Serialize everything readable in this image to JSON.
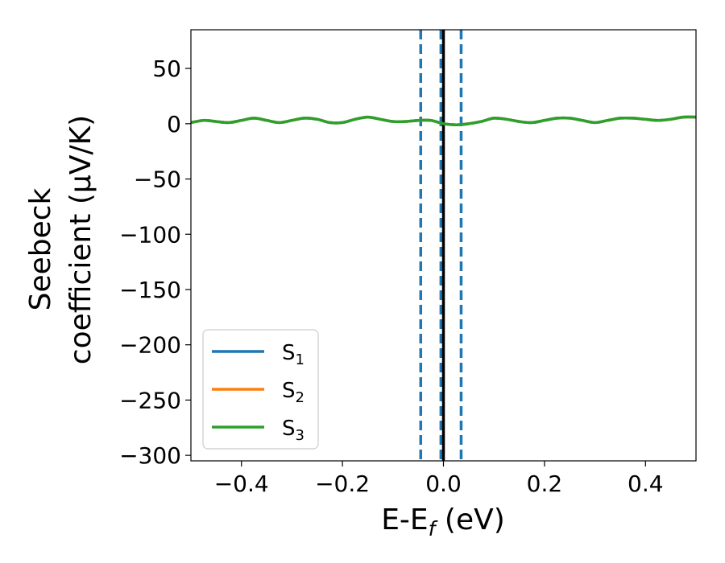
{
  "chart_data": {
    "type": "line",
    "xlabel": "E-E",
    "xlabel_sub": "f",
    "xlabel_unit": " (eV)",
    "ylabel_line1": "Seebeck",
    "ylabel_line2": "coefficient  (μV/K)",
    "xlim": [
      -0.5,
      0.5
    ],
    "ylim": [
      -305,
      85
    ],
    "xticks": [
      -0.4,
      -0.2,
      0.0,
      0.2,
      0.4
    ],
    "xtick_labels": [
      "−0.4",
      "−0.2",
      "0.0",
      "0.2",
      "0.4"
    ],
    "yticks": [
      50,
      0,
      -50,
      -100,
      -150,
      -200,
      -250,
      -300
    ],
    "ytick_labels": [
      "50",
      "0",
      "−50",
      "−100",
      "−150",
      "−200",
      "−250",
      "−300"
    ],
    "grid": false,
    "legend_position": "lower-left",
    "series": [
      {
        "name": "S",
        "sub": "1",
        "color": "#1f77b4"
      },
      {
        "name": "S",
        "sub": "2",
        "color": "#ff7f0e"
      },
      {
        "name": "S",
        "sub": "3",
        "color": "#2ca02c"
      }
    ],
    "curve": {
      "x": [
        -0.5,
        -0.475,
        -0.45,
        -0.425,
        -0.4,
        -0.375,
        -0.35,
        -0.325,
        -0.3,
        -0.275,
        -0.25,
        -0.225,
        -0.2,
        -0.175,
        -0.15,
        -0.125,
        -0.1,
        -0.075,
        -0.05,
        -0.025,
        0.0,
        0.025,
        0.05,
        0.075,
        0.1,
        0.125,
        0.15,
        0.175,
        0.2,
        0.225,
        0.25,
        0.275,
        0.3,
        0.325,
        0.35,
        0.375,
        0.4,
        0.425,
        0.45,
        0.475,
        0.5
      ],
      "y": [
        1,
        3,
        2,
        1,
        3,
        5,
        3,
        1,
        3,
        5,
        4,
        1,
        1,
        4,
        6,
        4,
        2,
        2,
        3,
        3,
        0,
        -1,
        0,
        2,
        5,
        4,
        2,
        1,
        3,
        5,
        5,
        3,
        1,
        3,
        5,
        5,
        4,
        3,
        4,
        6,
        6
      ]
    },
    "vlines_dashed": [
      -0.045,
      -0.005,
      0.035
    ],
    "vlines_dashed_color": "#1f77b4",
    "vline_solid": 0.0,
    "vline_solid_color": "#000000"
  }
}
